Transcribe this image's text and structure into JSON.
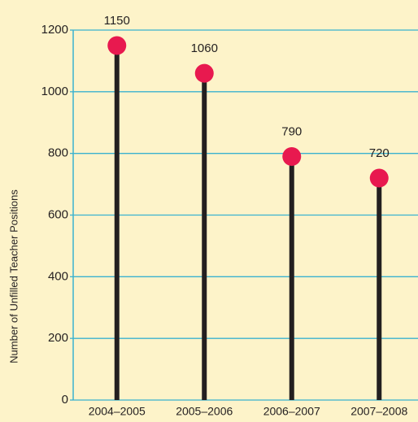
{
  "chart_data": {
    "type": "lollipop",
    "y_label": "Number of Unfilled Teacher Positions",
    "categories": [
      "2004–2005",
      "2005–2006",
      "2006–2007",
      "2007–2008"
    ],
    "values": [
      1150,
      1060,
      790,
      720
    ],
    "color": "#e8194f",
    "stem_color": "#231f20",
    "grid_color": "#3ab2cf",
    "ylim": [
      0,
      1200
    ],
    "yticks": [
      0,
      200,
      400,
      600,
      800,
      1000,
      1200
    ],
    "grid": true
  }
}
